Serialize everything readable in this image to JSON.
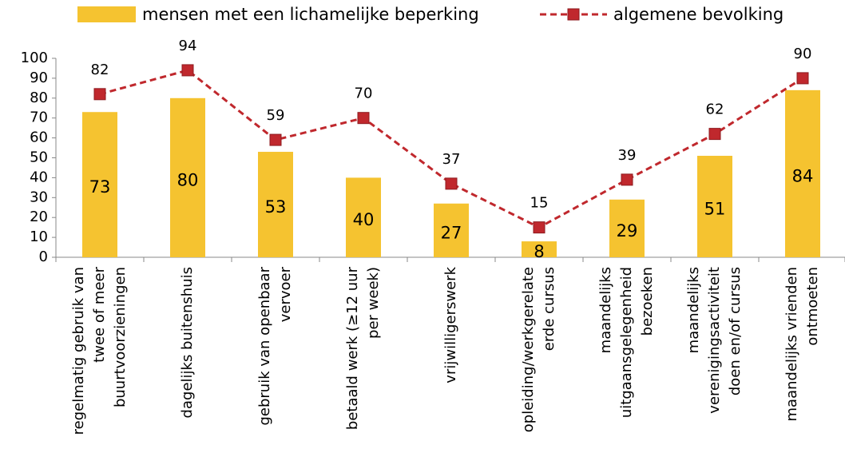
{
  "chart_data": {
    "type": "bar",
    "categories": [
      [
        "regelmatig gebruik van",
        "twee of meer",
        "buurtvoorzieningen"
      ],
      [
        "dagelijks buitenshuis"
      ],
      [
        "gebruik van openbaar",
        "vervoer"
      ],
      [
        "betaald werk (≥12 uur",
        "per week)"
      ],
      [
        "vrijwilligerswerk"
      ],
      [
        "opleiding/werkgerelate",
        "erde cursus"
      ],
      [
        "maandelijks",
        "uitgaansgelegenheid",
        "bezoeken"
      ],
      [
        "maandelijks",
        "verenigingsactiviteit",
        "doen en/of cursus"
      ],
      [
        "maandelijks vrienden",
        "ontmoeten"
      ]
    ],
    "series": [
      {
        "name": "mensen met een lichamelijke beperking",
        "type": "bar",
        "color": "#f5c330",
        "values": [
          73,
          80,
          53,
          40,
          27,
          8,
          29,
          51,
          84
        ]
      },
      {
        "name": "algemene bevolking",
        "type": "line",
        "color": "#c0282d",
        "values": [
          82,
          94,
          59,
          70,
          37,
          15,
          39,
          62,
          90
        ]
      }
    ],
    "ylim": [
      0,
      100
    ],
    "yticks": [
      0,
      10,
      20,
      30,
      40,
      50,
      60,
      70,
      80,
      90,
      100
    ],
    "grid": false,
    "legend": "top"
  }
}
